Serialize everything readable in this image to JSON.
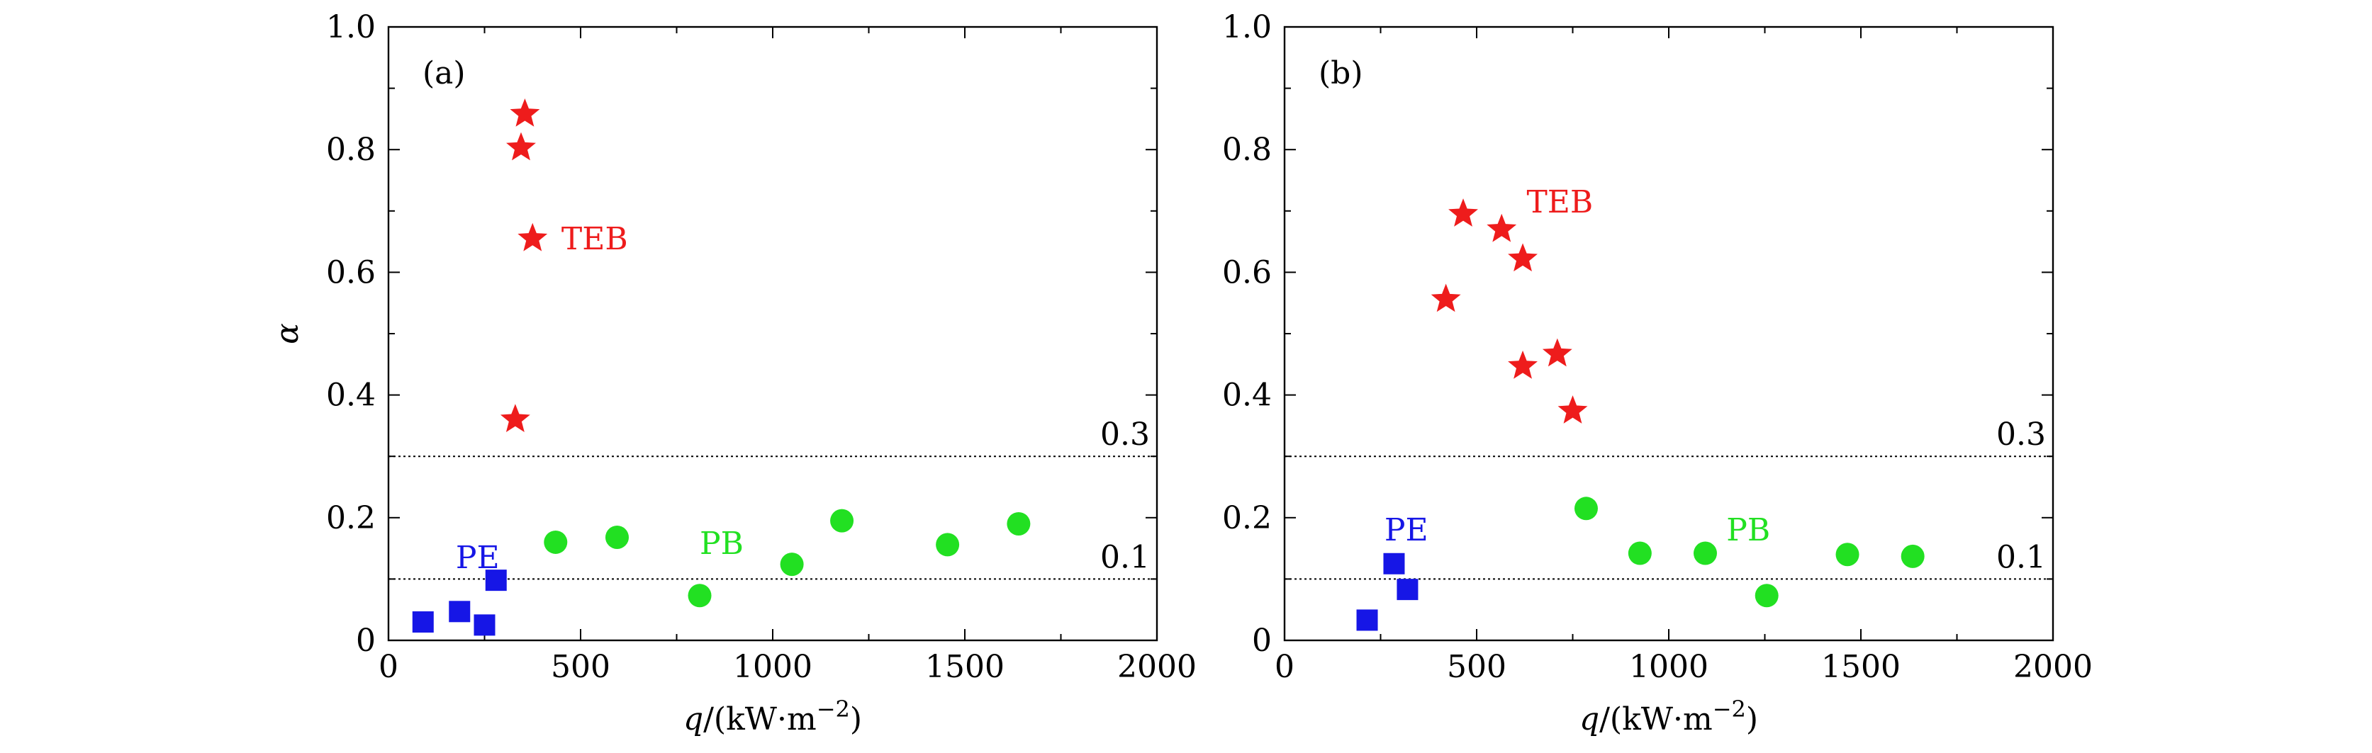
{
  "chart_data": [
    {
      "panel_label": "(a)",
      "type": "scatter",
      "xlabel": {
        "var": "q",
        "rest": "/(kW·m",
        "sup": "−2",
        "close": ")"
      },
      "ylabel": "α",
      "xlim": [
        0,
        2000
      ],
      "ylim": [
        0,
        1.0
      ],
      "x_ticks": [
        0,
        500,
        1000,
        1500,
        2000
      ],
      "y_ticks": [
        0,
        0.2,
        0.4,
        0.6,
        0.8,
        1.0
      ],
      "y_tick_labels": [
        "0",
        "0.2",
        "0.4",
        "0.6",
        "0.8",
        "1.0"
      ],
      "show_ylabel": true,
      "reference_lines": [
        {
          "value": 0.3,
          "label": "0.3"
        },
        {
          "value": 0.1,
          "label": "0.1"
        }
      ],
      "series": [
        {
          "name": "TEB",
          "marker": "star",
          "color": "#ee1c1c",
          "label_at": [
            450,
            0.655
          ],
          "points": [
            [
              355,
              0.858
            ],
            [
              345,
              0.803
            ],
            [
              375,
              0.655
            ],
            [
              330,
              0.36
            ]
          ]
        },
        {
          "name": "PE",
          "marker": "square",
          "color": "#1616e6",
          "label_at": [
            175,
            0.135
          ],
          "points": [
            [
              90,
              0.03
            ],
            [
              185,
              0.047
            ],
            [
              250,
              0.025
            ],
            [
              280,
              0.098
            ]
          ]
        },
        {
          "name": "PB",
          "marker": "circle",
          "color": "#22e022",
          "label_at": [
            810,
            0.158
          ],
          "points": [
            [
              435,
              0.16
            ],
            [
              595,
              0.168
            ],
            [
              810,
              0.073
            ],
            [
              1050,
              0.124
            ],
            [
              1180,
              0.195
            ],
            [
              1455,
              0.156
            ],
            [
              1640,
              0.19
            ]
          ]
        }
      ]
    },
    {
      "panel_label": "(b)",
      "type": "scatter",
      "xlabel": {
        "var": "q",
        "rest": "/(kW·m",
        "sup": "−2",
        "close": ")"
      },
      "ylabel": "",
      "xlim": [
        0,
        2000
      ],
      "ylim": [
        0,
        1.0
      ],
      "x_ticks": [
        0,
        500,
        1000,
        1500,
        2000
      ],
      "y_ticks": [
        0,
        0.2,
        0.4,
        0.6,
        0.8,
        1.0
      ],
      "y_tick_labels": [
        "0",
        "0.2",
        "0.4",
        "0.6",
        "0.8",
        "1.0"
      ],
      "show_ylabel": false,
      "reference_lines": [
        {
          "value": 0.3,
          "label": "0.3"
        },
        {
          "value": 0.1,
          "label": "0.1"
        }
      ],
      "series": [
        {
          "name": "TEB",
          "marker": "star",
          "color": "#ee1c1c",
          "label_at": [
            630,
            0.715
          ],
          "points": [
            [
              465,
              0.695
            ],
            [
              565,
              0.67
            ],
            [
              620,
              0.622
            ],
            [
              420,
              0.556
            ],
            [
              620,
              0.447
            ],
            [
              710,
              0.467
            ],
            [
              750,
              0.374
            ]
          ]
        },
        {
          "name": "PE",
          "marker": "square",
          "color": "#1616e6",
          "label_at": [
            260,
            0.18
          ],
          "points": [
            [
              285,
              0.125
            ],
            [
              320,
              0.083
            ],
            [
              215,
              0.033
            ]
          ]
        },
        {
          "name": "PB",
          "marker": "circle",
          "color": "#22e022",
          "label_at": [
            1150,
            0.18
          ],
          "points": [
            [
              785,
              0.215
            ],
            [
              925,
              0.142
            ],
            [
              1095,
              0.142
            ],
            [
              1255,
              0.073
            ],
            [
              1465,
              0.14
            ],
            [
              1635,
              0.137
            ]
          ]
        }
      ]
    }
  ]
}
